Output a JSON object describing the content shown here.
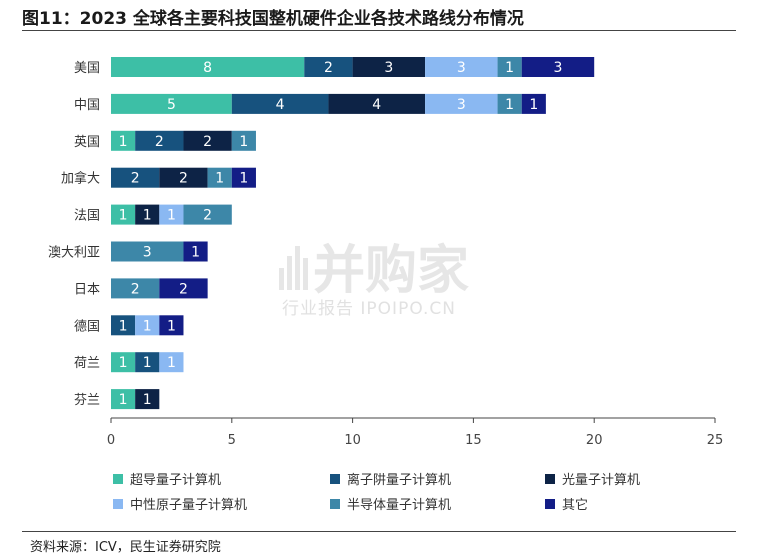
{
  "header": {
    "title": "图11：2023 全球各主要科技国整机硬件企业各技术路线分布情况"
  },
  "footer": {
    "source": "资料来源：ICV，民生证券研究院"
  },
  "watermark": {
    "brand": "并购家",
    "subtitle": "行业报告 IPOIPO.CN"
  },
  "chart_data": {
    "type": "bar",
    "orientation": "horizontal",
    "stacked": true,
    "categories": [
      "美国",
      "中国",
      "英国",
      "加拿大",
      "法国",
      "澳大利亚",
      "日本",
      "德国",
      "荷兰",
      "芬兰"
    ],
    "series": [
      {
        "name": "超导量子计算机",
        "color": "#3dbfa6",
        "values": [
          8,
          5,
          1,
          0,
          1,
          0,
          0,
          0,
          1,
          1
        ]
      },
      {
        "name": "离子阱量子计算机",
        "color": "#17527e",
        "values": [
          2,
          4,
          2,
          2,
          0,
          0,
          0,
          1,
          1,
          0
        ]
      },
      {
        "name": "光量子计算机",
        "color": "#0d2346",
        "values": [
          3,
          4,
          2,
          2,
          1,
          0,
          0,
          0,
          0,
          1
        ]
      },
      {
        "name": "中性原子量子计算机",
        "color": "#8ab8f2",
        "values": [
          3,
          3,
          0,
          0,
          1,
          0,
          0,
          1,
          1,
          0
        ]
      },
      {
        "name": "半导体量子计算机",
        "color": "#3d87a8",
        "values": [
          1,
          1,
          1,
          1,
          2,
          3,
          2,
          0,
          0,
          0
        ]
      },
      {
        "name": "其它",
        "color": "#131d86",
        "values": [
          3,
          1,
          0,
          1,
          0,
          1,
          2,
          1,
          0,
          0
        ]
      }
    ],
    "xlim": [
      0,
      25
    ],
    "xticks": [
      0,
      5,
      10,
      15,
      20,
      25
    ],
    "grid": false,
    "legend_position": "bottom"
  }
}
